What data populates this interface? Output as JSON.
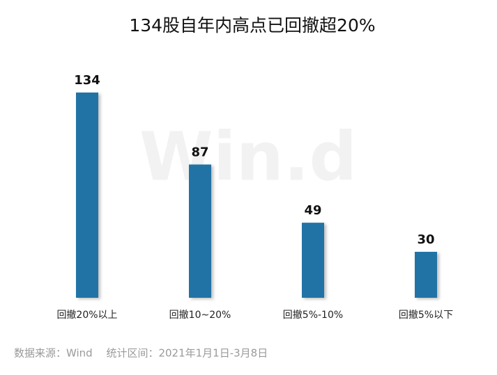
{
  "chart_data": {
    "type": "bar",
    "title": "134股自年内高点已回撤超20%",
    "categories": [
      "回撤20%以上",
      "回撤10~20%",
      "回撤5%-10%",
      "回撤5%以下"
    ],
    "values": [
      134,
      87,
      49,
      30
    ],
    "color": "#2373a5",
    "watermark": "Win.d",
    "source": "数据来源：Wind　 统计区间：2021年1月1日-3月8日"
  }
}
